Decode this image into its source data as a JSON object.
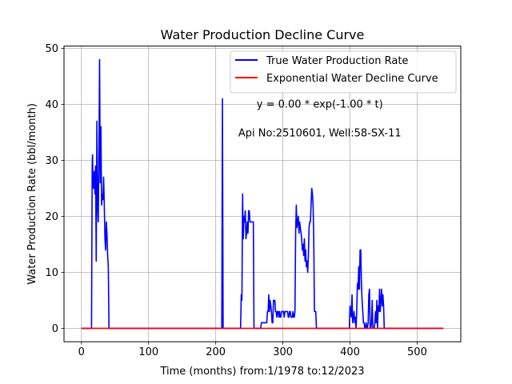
{
  "chart_data": {
    "type": "line",
    "title": "Water Production Decline Curve",
    "xlabel": "Time (months) from:1/1978 to:12/2023",
    "ylabel": "Water Production Rate (bbl/month)",
    "xlim": [
      -26,
      565
    ],
    "ylim": [
      -2.4,
      50.4
    ],
    "xticks": [
      0,
      100,
      200,
      300,
      400,
      500
    ],
    "yticks": [
      0,
      10,
      20,
      30,
      40,
      50
    ],
    "grid": true,
    "legend_position": "top-right",
    "annotations": [
      {
        "text": "y = 0.00 * exp(-1.00 * t)",
        "x": 355,
        "y": 39.4
      },
      {
        "text": "Api No:2510601, Well:58-SX-11",
        "x": 355,
        "y": 34.3
      }
    ],
    "series": [
      {
        "name": "True Water Production Rate",
        "color": "#0000ff",
        "points": [
          [
            0,
            0
          ],
          [
            15,
            0
          ],
          [
            16,
            29
          ],
          [
            16.5,
            31
          ],
          [
            17,
            27
          ],
          [
            18,
            25
          ],
          [
            19,
            28
          ],
          [
            20,
            24
          ],
          [
            21,
            29
          ],
          [
            22,
            12
          ],
          [
            23,
            37
          ],
          [
            24,
            22
          ],
          [
            25,
            19
          ],
          [
            26,
            30
          ],
          [
            27,
            48
          ],
          [
            28,
            26
          ],
          [
            29,
            36
          ],
          [
            30,
            22
          ],
          [
            31,
            24
          ],
          [
            32,
            23
          ],
          [
            33,
            27
          ],
          [
            34,
            22
          ],
          [
            35,
            16
          ],
          [
            36,
            14
          ],
          [
            37,
            19
          ],
          [
            38,
            17
          ],
          [
            39,
            13
          ],
          [
            40,
            11
          ],
          [
            41,
            0
          ],
          [
            42,
            0
          ],
          [
            209,
            0
          ],
          [
            210,
            41
          ],
          [
            211,
            0
          ],
          [
            212,
            0
          ],
          [
            237,
            0
          ],
          [
            238,
            6
          ],
          [
            239,
            5
          ],
          [
            240,
            24
          ],
          [
            241,
            16
          ],
          [
            242,
            20
          ],
          [
            243,
            19
          ],
          [
            244,
            21
          ],
          [
            245,
            16
          ],
          [
            246,
            17
          ],
          [
            247,
            19
          ],
          [
            248,
            17
          ],
          [
            249,
            21
          ],
          [
            250,
            21
          ],
          [
            251,
            19
          ],
          [
            252,
            19
          ],
          [
            253,
            19
          ],
          [
            254,
            19
          ],
          [
            255,
            19
          ],
          [
            256,
            19
          ],
          [
            257,
            0
          ],
          [
            258,
            0
          ],
          [
            267,
            0
          ],
          [
            268,
            1
          ],
          [
            276,
            1
          ],
          [
            277,
            3
          ],
          [
            278,
            3
          ],
          [
            279,
            6
          ],
          [
            280,
            3
          ],
          [
            281,
            5
          ],
          [
            282,
            4
          ],
          [
            283,
            3
          ],
          [
            284,
            1
          ],
          [
            285,
            1
          ],
          [
            286,
            5
          ],
          [
            287,
            5
          ],
          [
            288,
            5
          ],
          [
            289,
            3
          ],
          [
            290,
            3
          ],
          [
            291,
            2
          ],
          [
            292,
            3
          ],
          [
            293,
            3
          ],
          [
            294,
            2
          ],
          [
            295,
            3
          ],
          [
            296,
            2
          ],
          [
            297,
            2
          ],
          [
            298,
            3
          ],
          [
            299,
            3
          ],
          [
            300,
            3
          ],
          [
            301,
            3
          ],
          [
            302,
            2
          ],
          [
            303,
            3
          ],
          [
            304,
            3
          ],
          [
            305,
            3
          ],
          [
            306,
            3
          ],
          [
            307,
            3
          ],
          [
            308,
            2
          ],
          [
            309,
            2
          ],
          [
            310,
            3
          ],
          [
            311,
            3
          ],
          [
            312,
            2
          ],
          [
            313,
            2
          ],
          [
            314,
            2
          ],
          [
            315,
            3
          ],
          [
            316,
            2
          ],
          [
            317,
            2
          ],
          [
            318,
            3
          ],
          [
            319,
            17
          ],
          [
            320,
            22
          ],
          [
            321,
            18
          ],
          [
            322,
            19
          ],
          [
            323,
            20
          ],
          [
            324,
            17
          ],
          [
            325,
            19
          ],
          [
            326,
            18
          ],
          [
            327,
            17
          ],
          [
            328,
            16
          ],
          [
            329,
            14
          ],
          [
            330,
            15
          ],
          [
            331,
            13
          ],
          [
            332,
            16
          ],
          [
            333,
            12
          ],
          [
            334,
            14
          ],
          [
            335,
            11
          ],
          [
            336,
            12
          ],
          [
            337,
            10
          ],
          [
            338,
            13
          ],
          [
            339,
            18
          ],
          [
            340,
            19
          ],
          [
            341,
            19
          ],
          [
            342,
            22
          ],
          [
            343,
            25
          ],
          [
            344,
            24
          ],
          [
            345,
            22
          ],
          [
            346,
            16
          ],
          [
            347,
            3
          ],
          [
            348,
            3
          ],
          [
            349,
            3
          ],
          [
            350,
            0
          ],
          [
            351,
            0
          ],
          [
            398,
            0
          ],
          [
            399,
            0
          ],
          [
            400,
            4
          ],
          [
            401,
            3
          ],
          [
            402,
            2
          ],
          [
            403,
            6
          ],
          [
            404,
            1
          ],
          [
            405,
            2
          ],
          [
            406,
            3
          ],
          [
            407,
            1
          ],
          [
            408,
            2
          ],
          [
            409,
            0
          ],
          [
            410,
            3
          ],
          [
            411,
            8
          ],
          [
            412,
            7
          ],
          [
            413,
            11
          ],
          [
            414,
            7
          ],
          [
            415,
            14
          ],
          [
            416,
            14
          ],
          [
            417,
            8
          ],
          [
            418,
            5
          ],
          [
            419,
            3
          ],
          [
            420,
            1
          ],
          [
            421,
            1
          ],
          [
            422,
            0
          ],
          [
            423,
            0
          ],
          [
            424,
            1
          ],
          [
            425,
            0
          ],
          [
            426,
            0
          ],
          [
            427,
            1
          ],
          [
            428,
            6
          ],
          [
            429,
            7
          ],
          [
            430,
            0
          ],
          [
            431,
            0
          ],
          [
            432,
            1
          ],
          [
            433,
            5
          ],
          [
            434,
            0
          ],
          [
            435,
            0
          ],
          [
            436,
            0
          ],
          [
            437,
            1
          ],
          [
            438,
            3
          ],
          [
            439,
            1
          ],
          [
            440,
            5
          ],
          [
            441,
            0
          ],
          [
            442,
            4
          ],
          [
            443,
            3
          ],
          [
            444,
            7
          ],
          [
            445,
            3
          ],
          [
            446,
            5
          ],
          [
            447,
            7
          ],
          [
            448,
            4
          ],
          [
            449,
            6
          ],
          [
            450,
            4
          ],
          [
            451,
            0
          ],
          [
            452,
            0
          ],
          [
            539,
            0
          ]
        ]
      },
      {
        "name": "Exponential Water Decline Curve",
        "color": "#ff0000",
        "points": [
          [
            0,
            0
          ],
          [
            539,
            0
          ]
        ]
      }
    ]
  }
}
